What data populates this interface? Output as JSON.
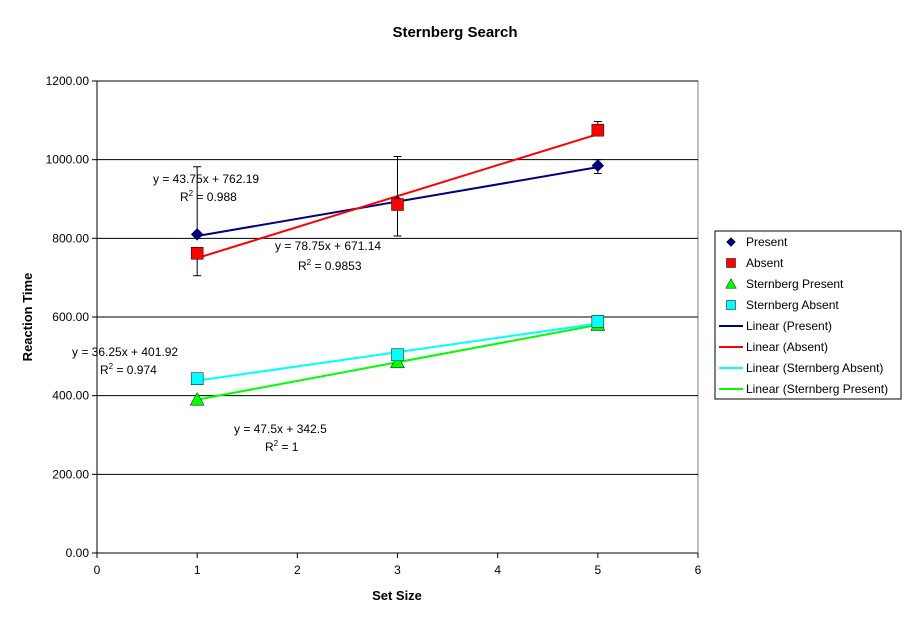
{
  "chart_data": {
    "type": "scatter",
    "title": "Sternberg Search",
    "xlabel": "Set Size",
    "ylabel": "Reaction Time",
    "xlim": [
      0,
      6
    ],
    "ylim": [
      0,
      1200
    ],
    "x_ticks": [
      "0",
      "1",
      "2",
      "3",
      "4",
      "5",
      "6"
    ],
    "y_ticks": [
      "0.00",
      "200.00",
      "400.00",
      "600.00",
      "800.00",
      "1000.00",
      "1200.00"
    ],
    "grid": "horizontal",
    "legend_position": "right",
    "series": [
      {
        "name": "Present",
        "color": "#000080",
        "marker": "diamond",
        "x": [
          1,
          3,
          5
        ],
        "y": [
          810,
          893,
          985
        ],
        "err_low": [
          0,
          0,
          20
        ],
        "err_high": [
          172,
          0,
          15
        ]
      },
      {
        "name": "Absent",
        "color": "#ff0000",
        "marker": "square",
        "x": [
          1,
          3,
          5
        ],
        "y": [
          762,
          886,
          1075
        ],
        "err_low": [
          57,
          80,
          0
        ],
        "err_high": [
          0,
          122,
          22
        ]
      },
      {
        "name": "Sternberg Present",
        "color": "#00ff00",
        "marker": "triangle",
        "x": [
          1,
          3,
          5
        ],
        "y": [
          390,
          485,
          580
        ]
      },
      {
        "name": "Sternberg Absent",
        "color": "#00ffff",
        "marker": "square",
        "x": [
          1,
          3,
          5
        ],
        "y": [
          443,
          504,
          589
        ]
      }
    ],
    "trendlines": [
      {
        "name": "Linear (Present)",
        "color": "#000080",
        "slope": 43.75,
        "intercept": 762.19,
        "x_range": [
          1,
          5
        ]
      },
      {
        "name": "Linear (Absent)",
        "color": "#ff0000",
        "slope": 78.75,
        "intercept": 671.14,
        "x_range": [
          1,
          5
        ]
      },
      {
        "name": "Linear (Sternberg Absent)",
        "color": "#00ffff",
        "slope": 36.25,
        "intercept": 401.92,
        "x_range": [
          1,
          5
        ]
      },
      {
        "name": "Linear (Sternberg Present)",
        "color": "#00ff00",
        "slope": 47.5,
        "intercept": 342.5,
        "x_range": [
          1,
          5
        ]
      }
    ],
    "annotations": [
      {
        "eq": "y = 43.75x + 762.19",
        "r2": "= 0.988"
      },
      {
        "eq": "y = 78.75x + 671.14",
        "r2": "= 0.9853"
      },
      {
        "eq": "y = 36.25x + 401.92",
        "r2": "= 0.974"
      },
      {
        "eq": "y = 47.5x + 342.5",
        "r2": "= 1"
      }
    ]
  }
}
